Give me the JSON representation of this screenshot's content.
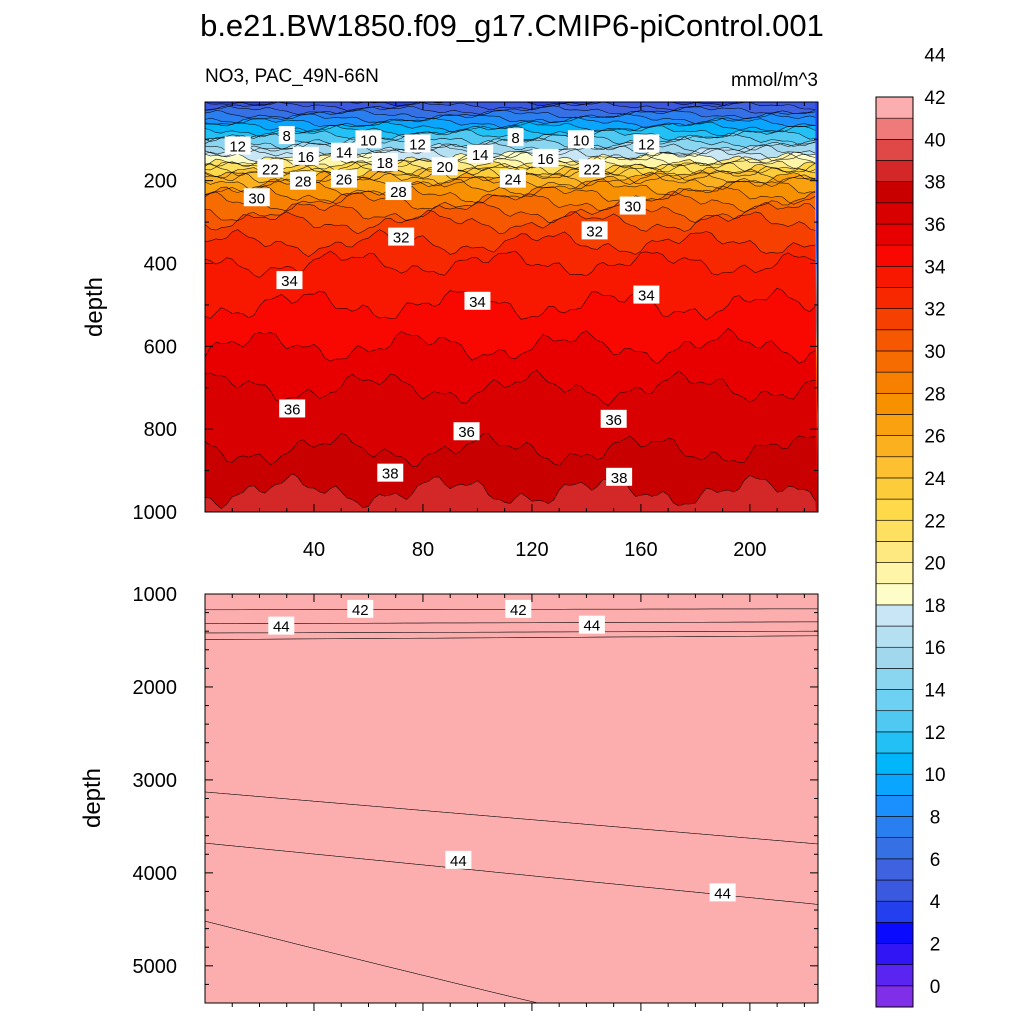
{
  "title": "b.e21.BW1850.f09_g17.CMIP6-piControl.001",
  "chart_data": [
    {
      "type": "contour",
      "name": "upper-panel",
      "variable_label": "NO3, PAC_49N-66N",
      "units_label": "mmol/m^3",
      "ylabel": "depth",
      "xlabel": "",
      "xlim": [
        0,
        225
      ],
      "ylim": [
        1000,
        10
      ],
      "x_ticks": [
        "40",
        "80",
        "120",
        "160",
        "200"
      ],
      "y_ticks": [
        "200",
        "400",
        "600",
        "800",
        "1000"
      ],
      "contour_profile": [
        {
          "depth": 10,
          "value": 4
        },
        {
          "depth": 40,
          "value": 7
        },
        {
          "depth": 80,
          "value": 11
        },
        {
          "depth": 120,
          "value": 15
        },
        {
          "depth": 160,
          "value": 20
        },
        {
          "depth": 180,
          "value": 23
        },
        {
          "depth": 200,
          "value": 26
        },
        {
          "depth": 250,
          "value": 29
        },
        {
          "depth": 300,
          "value": 31
        },
        {
          "depth": 400,
          "value": 33
        },
        {
          "depth": 500,
          "value": 34
        },
        {
          "depth": 600,
          "value": 35
        },
        {
          "depth": 700,
          "value": 36
        },
        {
          "depth": 800,
          "value": 36.5
        },
        {
          "depth": 900,
          "value": 37.5
        },
        {
          "depth": 1000,
          "value": 38.5
        }
      ],
      "contour_labels": [
        {
          "x": 12,
          "depth": 115,
          "text": "12"
        },
        {
          "x": 30,
          "depth": 90,
          "text": "8"
        },
        {
          "x": 60,
          "depth": 100,
          "text": "10"
        },
        {
          "x": 78,
          "depth": 110,
          "text": "12"
        },
        {
          "x": 114,
          "depth": 95,
          "text": "8"
        },
        {
          "x": 138,
          "depth": 100,
          "text": "10"
        },
        {
          "x": 162,
          "depth": 110,
          "text": "12"
        },
        {
          "x": 37,
          "depth": 140,
          "text": "16"
        },
        {
          "x": 51,
          "depth": 130,
          "text": "14"
        },
        {
          "x": 66,
          "depth": 155,
          "text": "18"
        },
        {
          "x": 101,
          "depth": 135,
          "text": "14"
        },
        {
          "x": 125,
          "depth": 145,
          "text": "16"
        },
        {
          "x": 24,
          "depth": 170,
          "text": "22"
        },
        {
          "x": 88,
          "depth": 165,
          "text": "20"
        },
        {
          "x": 142,
          "depth": 170,
          "text": "22"
        },
        {
          "x": 36,
          "depth": 200,
          "text": "28"
        },
        {
          "x": 51,
          "depth": 195,
          "text": "26"
        },
        {
          "x": 71,
          "depth": 225,
          "text": "28"
        },
        {
          "x": 113,
          "depth": 195,
          "text": "24"
        },
        {
          "x": 19,
          "depth": 240,
          "text": "30"
        },
        {
          "x": 157,
          "depth": 260,
          "text": "30"
        },
        {
          "x": 72,
          "depth": 335,
          "text": "32"
        },
        {
          "x": 143,
          "depth": 320,
          "text": "32"
        },
        {
          "x": 31,
          "depth": 440,
          "text": "34"
        },
        {
          "x": 100,
          "depth": 490,
          "text": "34"
        },
        {
          "x": 162,
          "depth": 475,
          "text": "34"
        },
        {
          "x": 32,
          "depth": 750,
          "text": "36"
        },
        {
          "x": 96,
          "depth": 805,
          "text": "36"
        },
        {
          "x": 150,
          "depth": 775,
          "text": "36"
        },
        {
          "x": 68,
          "depth": 905,
          "text": "38"
        },
        {
          "x": 152,
          "depth": 915,
          "text": "38"
        }
      ]
    },
    {
      "type": "contour",
      "name": "lower-panel",
      "ylabel": "depth",
      "xlim": [
        0,
        225
      ],
      "ylim": [
        5400,
        1000
      ],
      "y_ticks": [
        "1000",
        "2000",
        "3000",
        "4000",
        "5000"
      ],
      "bands": [
        {
          "value": 41.5,
          "top_left": 1000,
          "top_right": 1000,
          "bottom_left": 1170,
          "bottom_right": 1160
        },
        {
          "value": 43.5,
          "top_left": 1170,
          "top_right": 1160,
          "bottom_left": 1320,
          "bottom_right": 1300
        },
        {
          "value": 44.5,
          "top_left": 1320,
          "top_right": 1300,
          "bottom_left": 1420,
          "bottom_right": 1400
        },
        {
          "value": 45.5,
          "top_left": 1420,
          "top_right": 1400,
          "bottom_left": 1490,
          "bottom_right": 1450
        },
        {
          "value": 46.5,
          "top_left": 1490,
          "top_right": 1450,
          "bottom_left": 3130,
          "bottom_right": 3690
        },
        {
          "value": 45.5,
          "top_left": 3130,
          "top_right": 3690,
          "bottom_left": 3680,
          "bottom_right": 4340
        },
        {
          "value": 44.5,
          "top_left": 3680,
          "top_right": 4340,
          "bottom_left": 4520,
          "bottom_right": 6000
        },
        {
          "value": 43.5,
          "top_left": 4520,
          "top_right": 6000,
          "bottom_left": 5400,
          "bottom_right": 5400
        }
      ],
      "contour_labels": [
        {
          "x": 57,
          "depth": 1160,
          "text": "42"
        },
        {
          "x": 115,
          "depth": 1160,
          "text": "42"
        },
        {
          "x": 28,
          "depth": 1340,
          "text": "44"
        },
        {
          "x": 142,
          "depth": 1330,
          "text": "44"
        },
        {
          "x": 93,
          "depth": 3860,
          "text": "44"
        },
        {
          "x": 190,
          "depth": 4210,
          "text": "44"
        }
      ]
    }
  ],
  "colorbar": {
    "tick_labels": [
      "0",
      "2",
      "4",
      "6",
      "8",
      "10",
      "12",
      "14",
      "16",
      "18",
      "20",
      "22",
      "24",
      "26",
      "28",
      "30",
      "32",
      "34",
      "36",
      "38",
      "40",
      "42",
      "44"
    ],
    "colors": [
      "#7f2fe8",
      "#5a25f0",
      "#3215f5",
      "#0a0aff",
      "#2440ee",
      "#3a58e0",
      "#3f63e0",
      "#3570e5",
      "#2a7ff0",
      "#1a90ff",
      "#0aa5ff",
      "#00b5fa",
      "#22c0f5",
      "#4fc9f2",
      "#6ed0f2",
      "#8ad5f0",
      "#a1d8ee",
      "#b5e0f2",
      "#c8e6f5",
      "#fdfdc8",
      "#fef5a8",
      "#fee880",
      "#fee060",
      "#fed94a",
      "#fdcc3a",
      "#fcc030",
      "#fbb020",
      "#f9a10f",
      "#f89100",
      "#f78000",
      "#f66c00",
      "#f55800",
      "#f64000",
      "#f72800",
      "#f81800",
      "#f80800",
      "#e80000",
      "#d80000",
      "#c80000",
      "#d42828",
      "#e04848",
      "#ee7a7a",
      "#fcaeae"
    ]
  }
}
